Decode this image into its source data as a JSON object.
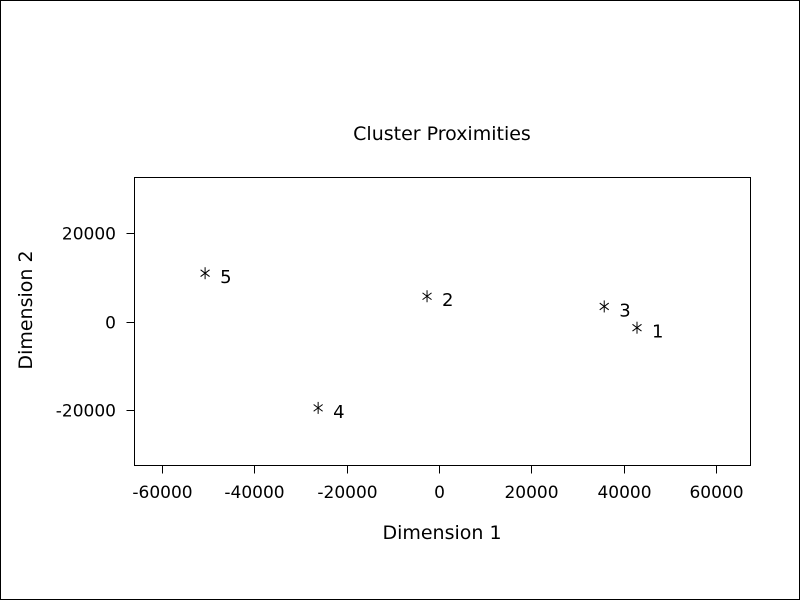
{
  "chart_data": {
    "type": "scatter",
    "title": "Cluster Proximities",
    "xlabel": "Dimension 1",
    "ylabel": "Dimension 2",
    "xlim": [
      -66000,
      67500
    ],
    "ylim": [
      -32500,
      32500
    ],
    "xticks": [
      -60000,
      -40000,
      -20000,
      0,
      20000,
      40000,
      60000
    ],
    "yticks": [
      -20000,
      0,
      20000
    ],
    "xtick_labels": [
      "-60000",
      "-40000",
      "-20000",
      "0",
      "20000",
      "40000",
      "60000"
    ],
    "ytick_labels": [
      "-20000",
      "0",
      "20000"
    ],
    "marker": "asterisk",
    "grid": false,
    "points": [
      {
        "label": "1",
        "x": 42900,
        "y": -1400
      },
      {
        "label": "2",
        "x": -2600,
        "y": 5700
      },
      {
        "label": "3",
        "x": 35800,
        "y": 3400
      },
      {
        "label": "4",
        "x": -26200,
        "y": -19500
      },
      {
        "label": "5",
        "x": -50700,
        "y": 10900
      }
    ]
  }
}
